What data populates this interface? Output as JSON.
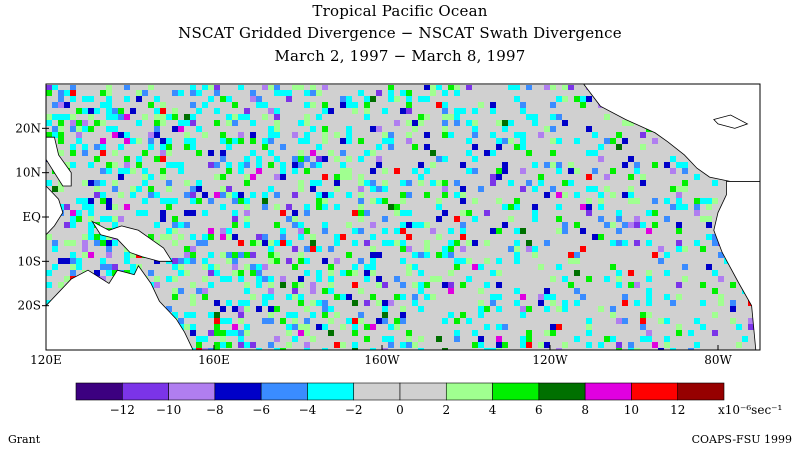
{
  "title": {
    "line1": "Tropical Pacific Ocean",
    "line2": "NSCAT Gridded Divergence − NSCAT Swath Divergence",
    "line3": "March 2, 1997 − March 8, 1997"
  },
  "map": {
    "lon_range": [
      120,
      290
    ],
    "lat_range": [
      -30,
      30
    ],
    "x_ticks": [
      {
        "label": "120E",
        "lon": 120
      },
      {
        "label": "160E",
        "lon": 160
      },
      {
        "label": "160W",
        "lon": 200
      },
      {
        "label": "120W",
        "lon": 240
      },
      {
        "label": "80W",
        "lon": 280
      }
    ],
    "y_ticks": [
      {
        "label": "20N",
        "lat": 20
      },
      {
        "label": "10N",
        "lat": 10
      },
      {
        "label": "EQ",
        "lat": 0
      },
      {
        "label": "10S",
        "lat": -10
      },
      {
        "label": "20S",
        "lat": -20
      }
    ]
  },
  "colorbar": {
    "colors": [
      "#3c0080",
      "#7b34e8",
      "#b07ef0",
      "#0000c8",
      "#3a8cff",
      "#00ffff",
      "#d0d0d0",
      "#d0d0d0",
      "#a0ff90",
      "#00f000",
      "#007000",
      "#e000e0",
      "#ff0000",
      "#960000"
    ],
    "labels": [
      "−12",
      "−10",
      "−8",
      "−6",
      "−4",
      "−2",
      "0",
      "2",
      "4",
      "6",
      "8",
      "10",
      "12"
    ],
    "unit": "x10⁻⁶sec⁻¹"
  },
  "footer": {
    "left": "Grant",
    "right": "COAPS-FSU 1999"
  }
}
